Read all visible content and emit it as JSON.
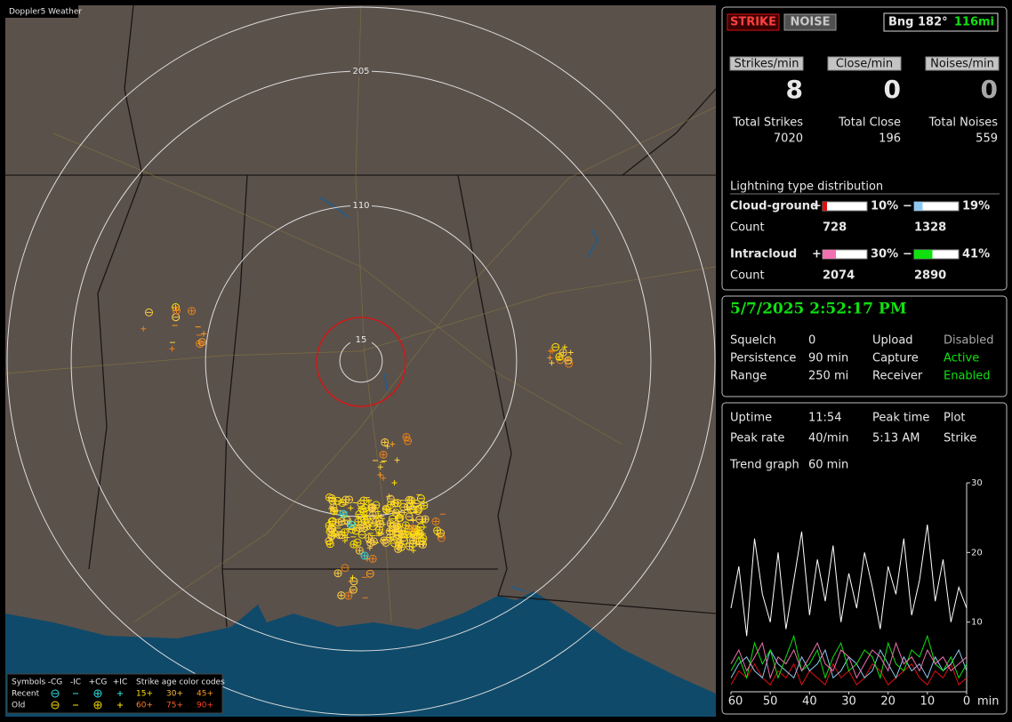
{
  "map": {
    "title": "Doppler5 Weather",
    "rings": [
      15,
      110,
      205
    ],
    "legend": {
      "symbols": "Symbols",
      "types": [
        "-CG",
        "-IC",
        "+CG",
        "+IC"
      ],
      "age_title": "Strike age color codes",
      "rows": [
        "Recent",
        "Old"
      ],
      "ages": [
        [
          "15+",
          "30+",
          "45+"
        ],
        [
          "60+",
          "75+",
          "90+"
        ]
      ]
    }
  },
  "header": {
    "strike": "STRIKE",
    "noise": "NOISE",
    "bearing": "Bng 182°",
    "distance": "116mi"
  },
  "rates": {
    "labels": [
      "Strikes/min",
      "Close/min",
      "Noises/min"
    ],
    "values": [
      8,
      0,
      0
    ],
    "total_labels": [
      "Total Strikes",
      "Total Close",
      "Total Noises"
    ],
    "totals": [
      7020,
      196,
      559
    ]
  },
  "distribution": {
    "title": "Lightning type distribution",
    "rows": [
      {
        "name": "Cloud-ground",
        "count_label": "Count",
        "positive": {
          "sign": "+",
          "value": 10,
          "label": "10%",
          "color": "#e01010",
          "count": 728
        },
        "negative": {
          "sign": "−",
          "value": 19,
          "label": "19%",
          "color": "#8ec8f0",
          "count": 1328
        }
      },
      {
        "name": "Intracloud",
        "count_label": "Count",
        "positive": {
          "sign": "+",
          "value": 30,
          "label": "30%",
          "color": "#f070b0",
          "count": 2074
        },
        "negative": {
          "sign": "−",
          "value": 41,
          "label": "41%",
          "color": "#10e010",
          "count": 2890
        }
      }
    ]
  },
  "status": {
    "datetime": "5/7/2025 2:52:17 PM",
    "rows": [
      [
        "Squelch",
        "0",
        "Upload",
        "Disabled"
      ],
      [
        "Persistence",
        "90 min",
        "Capture",
        "Active"
      ],
      [
        "Range",
        "250 mi",
        "Receiver",
        "Enabled"
      ]
    ]
  },
  "stats": {
    "rows": [
      [
        "Uptime",
        "11:54",
        "Peak time",
        "Plot"
      ],
      [
        "Peak rate",
        "40/min",
        "5:13 AM",
        "Strike"
      ]
    ],
    "trend_label": "Trend graph",
    "trend_value": "60 min"
  },
  "chart_data": {
    "type": "line",
    "x_label": "min",
    "x": [
      60,
      58,
      56,
      54,
      52,
      50,
      48,
      46,
      44,
      42,
      40,
      38,
      36,
      34,
      32,
      30,
      28,
      26,
      24,
      22,
      20,
      18,
      16,
      14,
      12,
      10,
      8,
      6,
      4,
      2,
      0
    ],
    "xlim": [
      60,
      0
    ],
    "xticks": [
      60,
      50,
      40,
      30,
      20,
      10,
      0
    ],
    "ylim": [
      0,
      30
    ],
    "yticks": [
      10,
      20,
      30
    ],
    "series": [
      {
        "color": "#ffffff",
        "values": [
          12,
          18,
          8,
          22,
          14,
          10,
          20,
          9,
          16,
          23,
          11,
          19,
          13,
          21,
          10,
          17,
          12,
          20,
          15,
          9,
          18,
          14,
          22,
          11,
          16,
          24,
          13,
          19,
          10,
          15,
          12
        ]
      },
      {
        "color": "#f070b0",
        "values": [
          4,
          6,
          3,
          5,
          7,
          2,
          5,
          4,
          6,
          3,
          5,
          7,
          4,
          3,
          6,
          5,
          2,
          4,
          6,
          5,
          3,
          7,
          4,
          5,
          3,
          6,
          4,
          5,
          3,
          4,
          5
        ]
      },
      {
        "color": "#10e010",
        "values": [
          3,
          5,
          2,
          7,
          4,
          6,
          2,
          5,
          8,
          3,
          4,
          6,
          2,
          5,
          7,
          3,
          4,
          6,
          5,
          2,
          7,
          4,
          3,
          6,
          5,
          8,
          4,
          3,
          5,
          2,
          4
        ]
      },
      {
        "color": "#8ec8f0",
        "values": [
          2,
          4,
          5,
          3,
          2,
          6,
          4,
          3,
          2,
          5,
          3,
          4,
          6,
          2,
          3,
          5,
          4,
          2,
          3,
          6,
          4,
          2,
          5,
          3,
          4,
          2,
          5,
          3,
          4,
          6,
          3
        ]
      },
      {
        "color": "#e01010",
        "values": [
          1,
          3,
          2,
          4,
          2,
          1,
          3,
          2,
          4,
          1,
          3,
          2,
          1,
          4,
          2,
          3,
          1,
          2,
          4,
          3,
          1,
          2,
          3,
          4,
          2,
          1,
          3,
          2,
          4,
          1,
          2
        ]
      }
    ]
  }
}
